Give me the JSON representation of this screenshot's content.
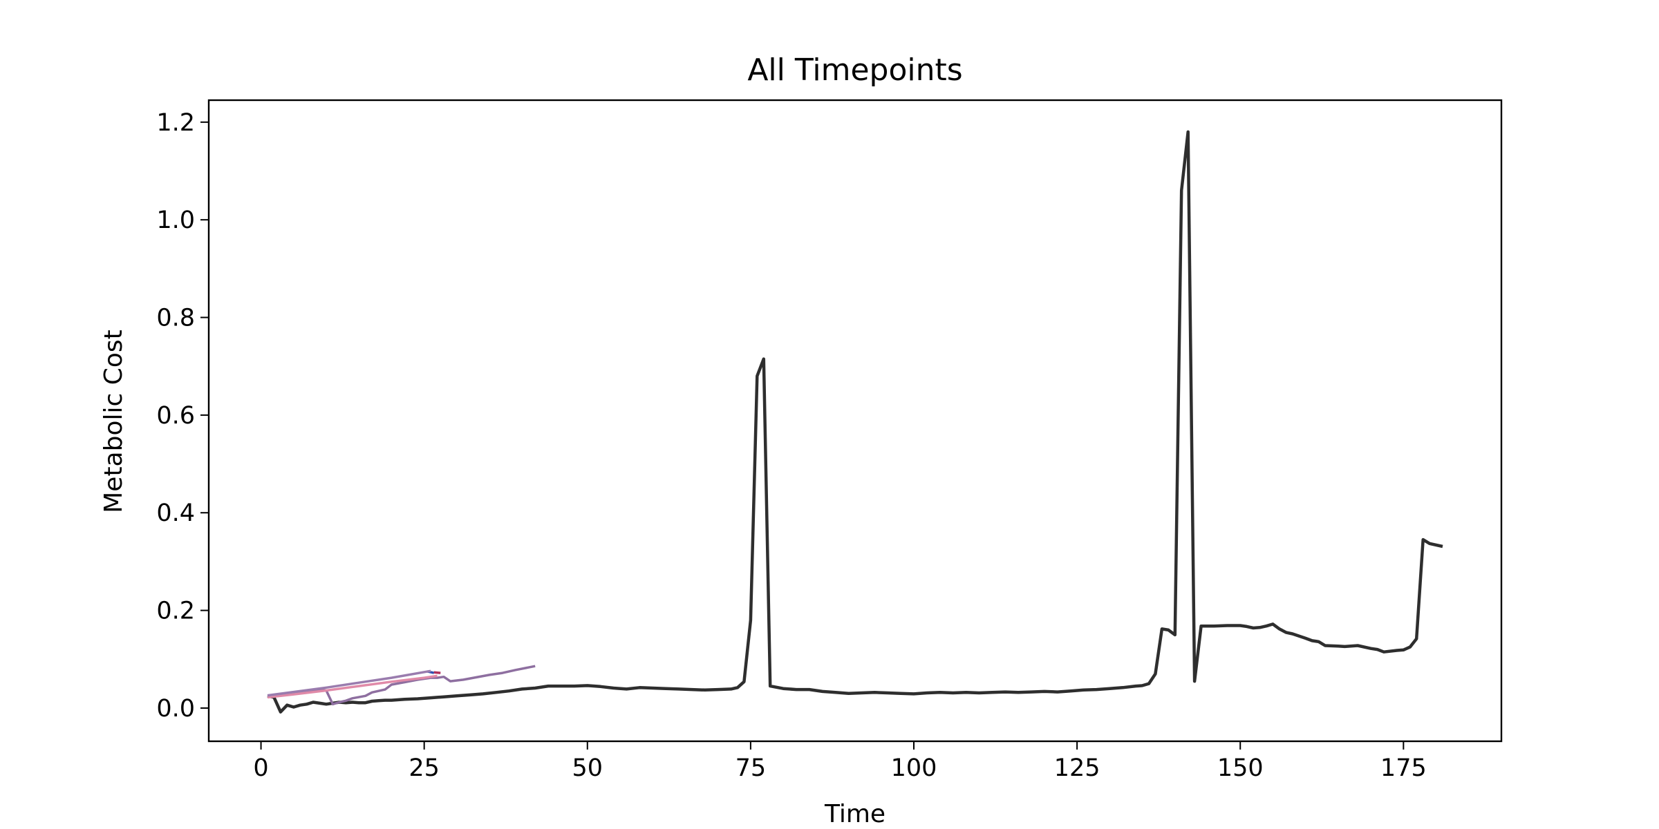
{
  "chart_data": {
    "type": "line",
    "title": "All Timepoints",
    "xlabel": "Time",
    "ylabel": "Metabolic Cost",
    "xlim": [
      -8,
      190
    ],
    "ylim": [
      -0.068,
      1.245
    ],
    "xticks": [
      0,
      25,
      50,
      75,
      100,
      125,
      150,
      175
    ],
    "yticks": [
      0.0,
      0.2,
      0.4,
      0.6,
      0.8,
      1.0,
      1.2
    ],
    "xtick_labels": [
      "0",
      "25",
      "50",
      "75",
      "100",
      "125",
      "150",
      "175"
    ],
    "ytick_labels": [
      "0.0",
      "0.2",
      "0.4",
      "0.6",
      "0.8",
      "1.0",
      "1.2"
    ],
    "grid": false,
    "legend": "none",
    "series": [
      {
        "color": "#2e2e2e",
        "points": [
          [
            1,
            0.025
          ],
          [
            2,
            0.022
          ],
          [
            3,
            -0.008
          ],
          [
            4,
            0.006
          ],
          [
            5,
            0.002
          ],
          [
            6,
            0.006
          ],
          [
            7,
            0.008
          ],
          [
            8,
            0.012
          ],
          [
            9,
            0.01
          ],
          [
            10,
            0.008
          ],
          [
            11,
            0.01
          ],
          [
            12,
            0.012
          ],
          [
            13,
            0.011
          ],
          [
            14,
            0.012
          ],
          [
            15,
            0.011
          ],
          [
            16,
            0.011
          ],
          [
            17,
            0.014
          ],
          [
            18,
            0.015
          ],
          [
            19,
            0.016
          ],
          [
            20,
            0.016
          ],
          [
            22,
            0.018
          ],
          [
            24,
            0.019
          ],
          [
            26,
            0.021
          ],
          [
            28,
            0.023
          ],
          [
            30,
            0.025
          ],
          [
            32,
            0.027
          ],
          [
            34,
            0.029
          ],
          [
            36,
            0.032
          ],
          [
            38,
            0.035
          ],
          [
            40,
            0.039
          ],
          [
            42,
            0.041
          ],
          [
            44,
            0.045
          ],
          [
            46,
            0.045
          ],
          [
            48,
            0.045
          ],
          [
            50,
            0.046
          ],
          [
            52,
            0.044
          ],
          [
            54,
            0.041
          ],
          [
            56,
            0.039
          ],
          [
            58,
            0.042
          ],
          [
            60,
            0.041
          ],
          [
            62,
            0.04
          ],
          [
            64,
            0.039
          ],
          [
            66,
            0.038
          ],
          [
            68,
            0.037
          ],
          [
            70,
            0.038
          ],
          [
            72,
            0.039
          ],
          [
            73,
            0.042
          ],
          [
            74,
            0.054
          ],
          [
            75,
            0.18
          ],
          [
            76,
            0.68
          ],
          [
            77,
            0.715
          ],
          [
            78,
            0.045
          ],
          [
            80,
            0.04
          ],
          [
            82,
            0.038
          ],
          [
            84,
            0.038
          ],
          [
            86,
            0.034
          ],
          [
            88,
            0.032
          ],
          [
            90,
            0.03
          ],
          [
            92,
            0.031
          ],
          [
            94,
            0.032
          ],
          [
            96,
            0.031
          ],
          [
            98,
            0.03
          ],
          [
            100,
            0.029
          ],
          [
            102,
            0.031
          ],
          [
            104,
            0.032
          ],
          [
            106,
            0.031
          ],
          [
            108,
            0.032
          ],
          [
            110,
            0.031
          ],
          [
            112,
            0.032
          ],
          [
            114,
            0.033
          ],
          [
            116,
            0.032
          ],
          [
            118,
            0.033
          ],
          [
            120,
            0.034
          ],
          [
            122,
            0.033
          ],
          [
            124,
            0.035
          ],
          [
            126,
            0.037
          ],
          [
            128,
            0.038
          ],
          [
            130,
            0.04
          ],
          [
            132,
            0.042
          ],
          [
            134,
            0.045
          ],
          [
            135,
            0.046
          ],
          [
            136,
            0.05
          ],
          [
            137,
            0.07
          ],
          [
            138,
            0.162
          ],
          [
            139,
            0.16
          ],
          [
            140,
            0.15
          ],
          [
            141,
            1.06
          ],
          [
            142,
            1.18
          ],
          [
            143,
            0.055
          ],
          [
            144,
            0.168
          ],
          [
            146,
            0.168
          ],
          [
            148,
            0.169
          ],
          [
            150,
            0.169
          ],
          [
            151,
            0.167
          ],
          [
            152,
            0.164
          ],
          [
            153,
            0.165
          ],
          [
            154,
            0.168
          ],
          [
            155,
            0.172
          ],
          [
            156,
            0.162
          ],
          [
            157,
            0.155
          ],
          [
            158,
            0.152
          ],
          [
            160,
            0.143
          ],
          [
            161,
            0.138
          ],
          [
            162,
            0.136
          ],
          [
            163,
            0.128
          ],
          [
            165,
            0.127
          ],
          [
            166,
            0.126
          ],
          [
            168,
            0.128
          ],
          [
            170,
            0.122
          ],
          [
            171,
            0.12
          ],
          [
            172,
            0.115
          ],
          [
            174,
            0.118
          ],
          [
            175,
            0.119
          ],
          [
            176,
            0.125
          ],
          [
            177,
            0.142
          ],
          [
            178,
            0.345
          ],
          [
            179,
            0.337
          ],
          [
            181,
            0.331
          ]
        ]
      },
      {
        "color": "#8e6fa0",
        "points": [
          [
            1,
            0.024
          ],
          [
            5,
            0.031
          ],
          [
            9,
            0.038
          ],
          [
            10,
            0.036
          ],
          [
            11,
            0.008
          ],
          [
            12,
            0.012
          ],
          [
            13,
            0.015
          ],
          [
            14,
            0.02
          ],
          [
            16,
            0.025
          ],
          [
            17,
            0.032
          ],
          [
            19,
            0.038
          ],
          [
            20,
            0.048
          ],
          [
            22,
            0.053
          ],
          [
            24,
            0.058
          ],
          [
            26,
            0.062
          ],
          [
            27,
            0.062
          ],
          [
            28,
            0.064
          ],
          [
            29,
            0.055
          ],
          [
            31,
            0.058
          ],
          [
            33,
            0.063
          ],
          [
            35,
            0.068
          ],
          [
            37,
            0.072
          ],
          [
            39,
            0.078
          ],
          [
            42,
            0.086
          ]
        ]
      },
      {
        "color": "#3050b0",
        "points": [
          [
            25.5,
            0.075
          ],
          [
            26.5,
            0.072
          ]
        ]
      },
      {
        "color": "#b0305a",
        "points": [
          [
            26.5,
            0.073
          ],
          [
            27.5,
            0.072
          ]
        ]
      },
      {
        "color": "#e08aa8",
        "points": [
          [
            1,
            0.022
          ],
          [
            5,
            0.028
          ],
          [
            10,
            0.036
          ],
          [
            15,
            0.045
          ],
          [
            20,
            0.054
          ],
          [
            25,
            0.062
          ],
          [
            27,
            0.066
          ]
        ]
      },
      {
        "color": "#9a7cae",
        "points": [
          [
            1,
            0.026
          ],
          [
            5,
            0.033
          ],
          [
            10,
            0.042
          ],
          [
            15,
            0.052
          ],
          [
            20,
            0.062
          ],
          [
            26,
            0.076
          ]
        ]
      }
    ]
  }
}
